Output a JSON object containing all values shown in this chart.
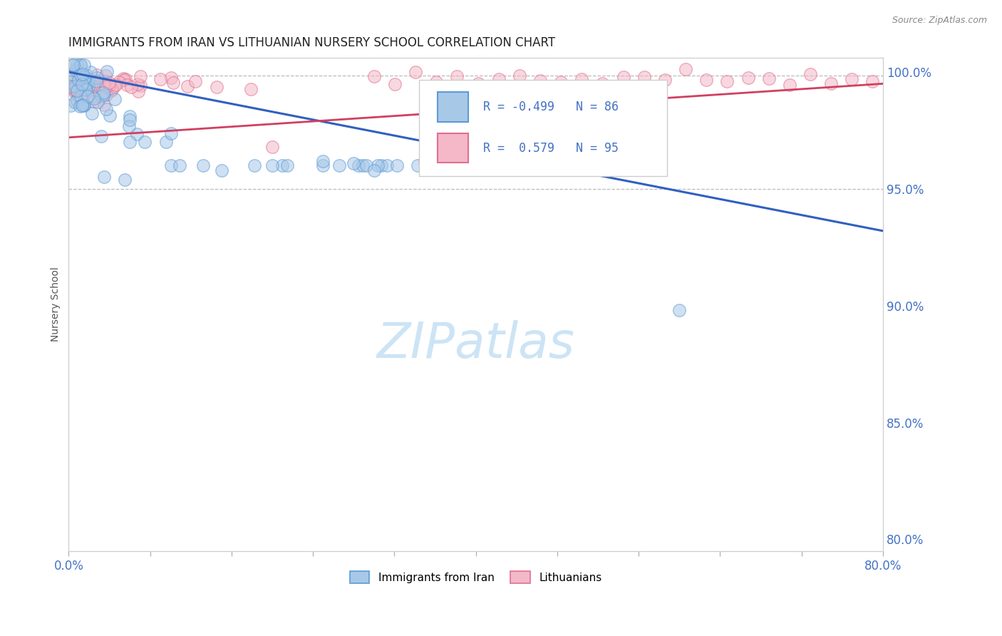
{
  "title": "IMMIGRANTS FROM IRAN VS LITHUANIAN NURSERY SCHOOL CORRELATION CHART",
  "source_text": "Source: ZipAtlas.com",
  "ylabel": "Nursery School",
  "xlim": [
    0.0,
    0.8
  ],
  "ylim": [
    0.795,
    1.006
  ],
  "yticks_right": [
    1.0,
    0.95,
    0.9,
    0.85,
    0.8
  ],
  "ytick_right_labels": [
    "100.0%",
    "95.0%",
    "90.0%",
    "85.0%",
    "80.0%"
  ],
  "legend_r_blue": "-0.499",
  "legend_n_blue": "86",
  "legend_r_pink": "0.579",
  "legend_n_pink": "95",
  "blue_color": "#a8c8e8",
  "blue_edge_color": "#5b9bd5",
  "pink_color": "#f4b8c8",
  "pink_edge_color": "#e07090",
  "blue_line_color": "#3060c0",
  "pink_line_color": "#d04060",
  "background_color": "#ffffff",
  "title_fontsize": 12,
  "watermark_color": "#cce4f5"
}
